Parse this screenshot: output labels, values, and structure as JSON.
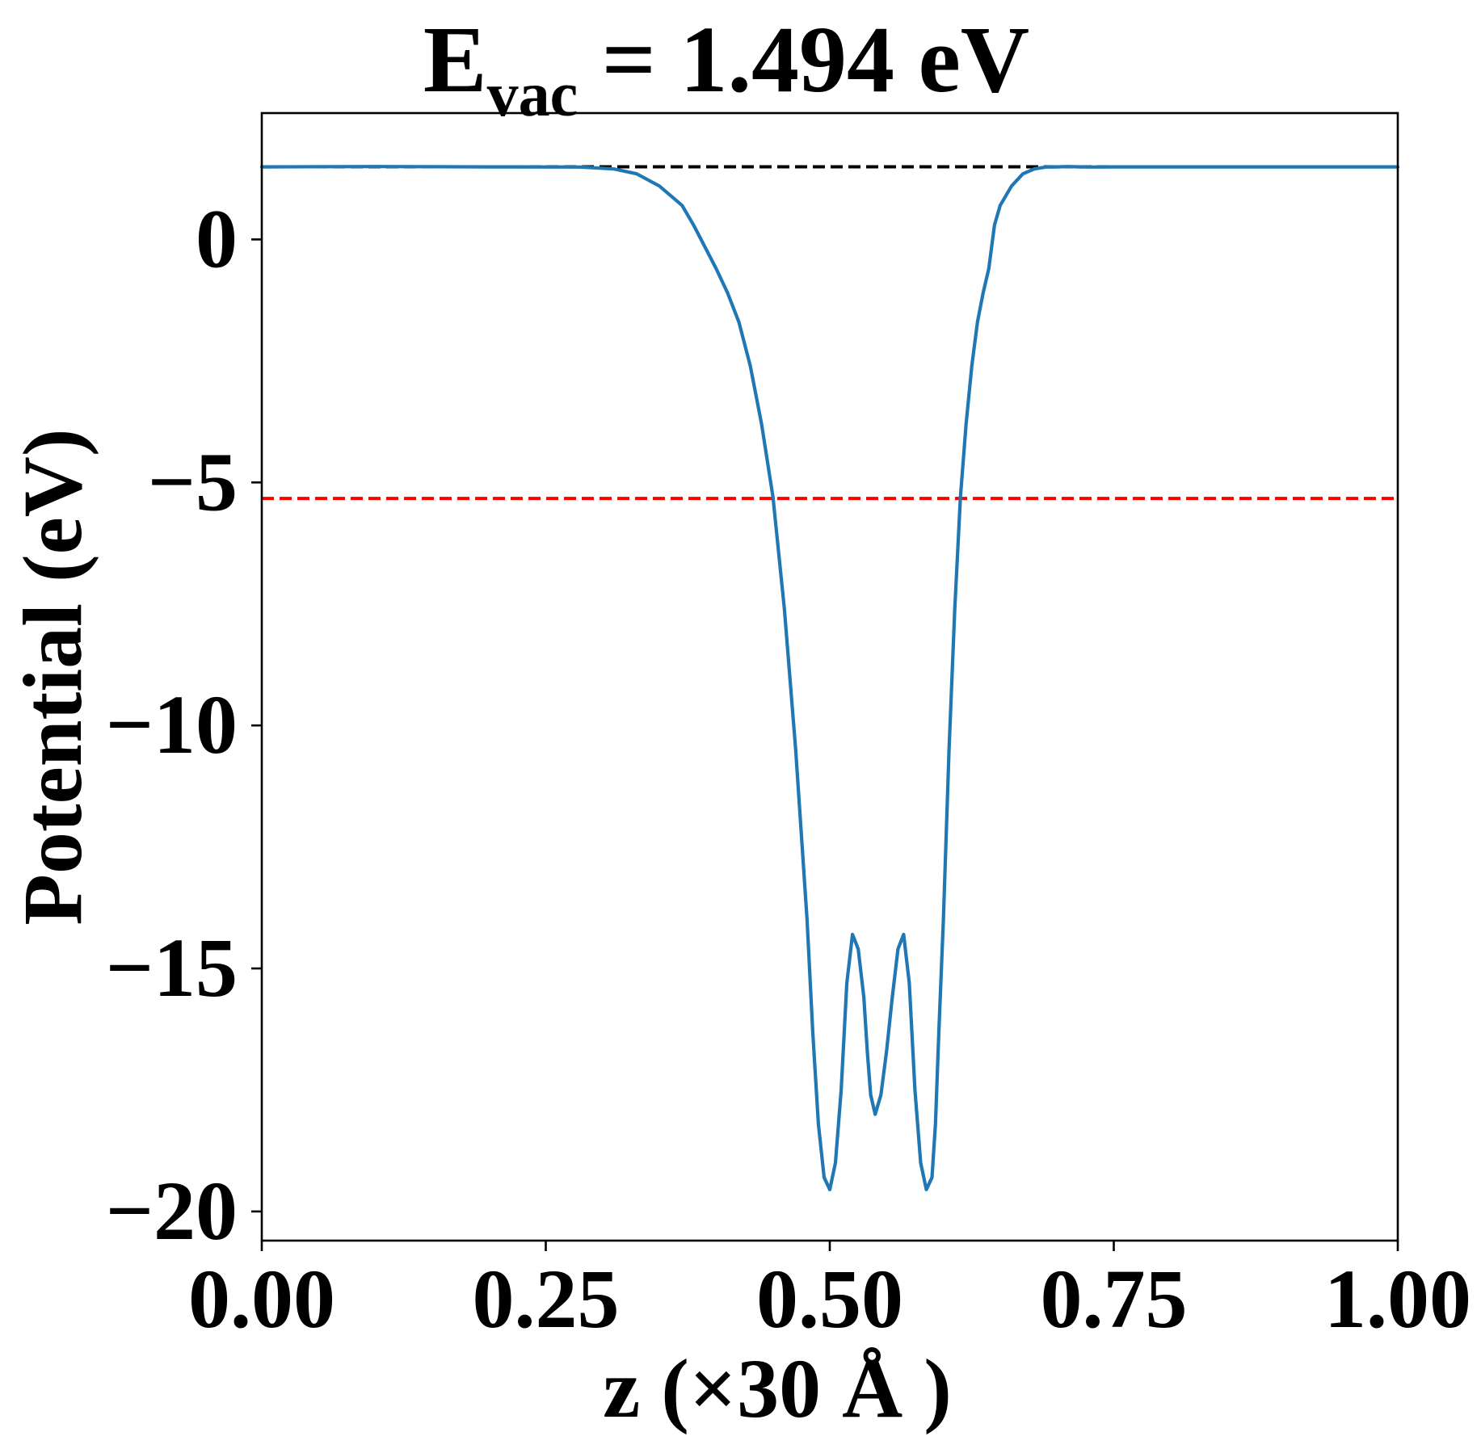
{
  "chart_data": {
    "type": "line",
    "title": {
      "symbol": "E",
      "subscript": "vac",
      "rest": " = 1.494 eV"
    },
    "xlabel": "z (×30 Å )",
    "ylabel": "Potential (eV)",
    "xlim": [
      0,
      1
    ],
    "ylim": [
      -20.6,
      2.6
    ],
    "xticks": [
      0,
      0.25,
      0.5,
      0.75,
      1
    ],
    "xtick_labels": [
      "0.00",
      "0.25",
      "0.50",
      "0.75",
      "1.00"
    ],
    "yticks": [
      0,
      -5,
      -10,
      -15,
      -20
    ],
    "ytick_labels": [
      "0",
      "−5",
      "−10",
      "−15",
      "−20"
    ],
    "grid": false,
    "legend": "none",
    "reference_lines": [
      {
        "y": 1.494,
        "style": "dashed",
        "color": "#000000"
      },
      {
        "y": -5.33,
        "style": "dashed",
        "color": "#ff0000"
      }
    ],
    "series": [
      {
        "color": "#1f77b4",
        "x": [
          0.0,
          0.1,
          0.2,
          0.28,
          0.31,
          0.33,
          0.35,
          0.37,
          0.38,
          0.4,
          0.41,
          0.42,
          0.43,
          0.44,
          0.45,
          0.46,
          0.47,
          0.48,
          0.485,
          0.49,
          0.495,
          0.5,
          0.505,
          0.51,
          0.515,
          0.52,
          0.525,
          0.53,
          0.533,
          0.536,
          0.54,
          0.545,
          0.55,
          0.555,
          0.56,
          0.565,
          0.57,
          0.575,
          0.58,
          0.585,
          0.59,
          0.593,
          0.596,
          0.6,
          0.605,
          0.61,
          0.615,
          0.62,
          0.625,
          0.63,
          0.635,
          0.64,
          0.645,
          0.65,
          0.66,
          0.67,
          0.68,
          0.69,
          0.7,
          0.71,
          0.72,
          0.73,
          0.75,
          0.77,
          0.79,
          0.81,
          0.85,
          0.9,
          1.0
        ],
        "y": [
          1.494,
          1.5,
          1.494,
          1.49,
          1.45,
          1.35,
          1.1,
          0.7,
          0.3,
          -0.6,
          -1.1,
          -1.7,
          -2.6,
          -3.8,
          -5.3,
          -7.6,
          -10.5,
          -14.0,
          -16.3,
          -18.2,
          -19.3,
          -19.55,
          -19.0,
          -17.5,
          -15.3,
          -14.3,
          -14.6,
          -15.6,
          -16.7,
          -17.6,
          -18.0,
          -17.6,
          -16.7,
          -15.6,
          -14.6,
          -14.3,
          -15.3,
          -17.5,
          -19.0,
          -19.55,
          -19.3,
          -18.2,
          -16.3,
          -14.0,
          -10.5,
          -7.6,
          -5.3,
          -3.8,
          -2.6,
          -1.7,
          -1.1,
          -0.6,
          0.3,
          0.7,
          1.1,
          1.35,
          1.45,
          1.49,
          1.494,
          1.5,
          1.494,
          1.49,
          1.494,
          1.494,
          1.494,
          1.494,
          1.494,
          1.494,
          1.494
        ]
      }
    ]
  }
}
